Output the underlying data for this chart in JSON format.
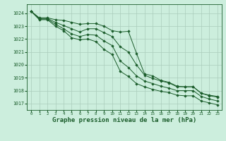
{
  "bg_color": "#cceedd",
  "grid_color": "#aaccbb",
  "line_color": "#1a5c2a",
  "marker_color": "#1a5c2a",
  "xlabel": "Graphe pression niveau de la mer (hPa)",
  "xlabel_fontsize": 6.5,
  "xlim": [
    -0.5,
    23.5
  ],
  "ylim": [
    1016.5,
    1024.7
  ],
  "yticks": [
    1017,
    1018,
    1019,
    1020,
    1021,
    1022,
    1023,
    1024
  ],
  "xticks": [
    0,
    1,
    2,
    3,
    4,
    5,
    6,
    7,
    8,
    9,
    10,
    11,
    12,
    13,
    14,
    15,
    16,
    17,
    18,
    19,
    20,
    21,
    22,
    23
  ],
  "series": [
    [
      1024.15,
      1023.65,
      1023.65,
      1023.5,
      1023.45,
      1023.3,
      1023.15,
      1023.2,
      1023.2,
      1023.0,
      1022.65,
      1022.55,
      1022.6,
      1020.9,
      1019.3,
      1019.15,
      1018.8,
      1018.65,
      1018.35,
      1018.3,
      1018.3,
      1017.8,
      1017.65,
      1017.55
    ],
    [
      1024.15,
      1023.6,
      1023.6,
      1023.3,
      1023.05,
      1022.8,
      1022.55,
      1022.8,
      1022.8,
      1022.5,
      1022.2,
      1021.4,
      1021.0,
      1020.0,
      1019.2,
      1018.95,
      1018.75,
      1018.6,
      1018.3,
      1018.3,
      1018.3,
      1017.8,
      1017.6,
      1017.5
    ],
    [
      1024.15,
      1023.55,
      1023.55,
      1023.15,
      1022.8,
      1022.4,
      1022.2,
      1022.35,
      1022.3,
      1021.85,
      1021.5,
      1020.3,
      1019.8,
      1019.15,
      1018.75,
      1018.55,
      1018.35,
      1018.2,
      1018.0,
      1018.0,
      1018.0,
      1017.55,
      1017.35,
      1017.2
    ],
    [
      1024.15,
      1023.5,
      1023.5,
      1023.0,
      1022.65,
      1022.1,
      1021.95,
      1022.0,
      1021.8,
      1021.2,
      1020.8,
      1019.5,
      1019.1,
      1018.55,
      1018.3,
      1018.1,
      1017.95,
      1017.85,
      1017.65,
      1017.6,
      1017.6,
      1017.2,
      1017.05,
      1016.9
    ]
  ],
  "title_color": "#1a5c2a"
}
